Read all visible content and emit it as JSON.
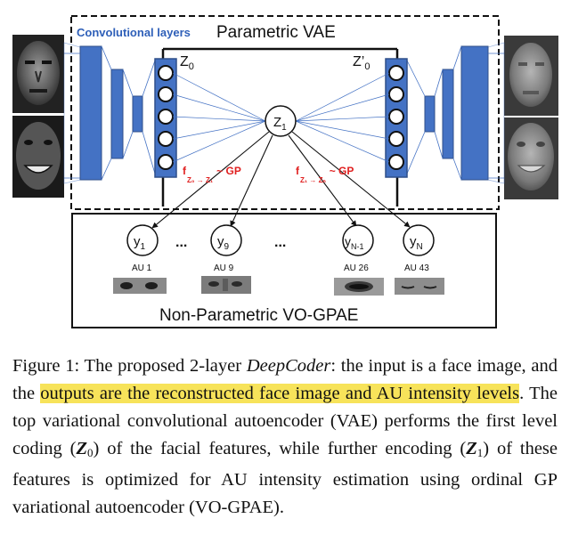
{
  "diagram": {
    "conv_layers_label": "Convolutional layers",
    "vae_title": "Parametric VAE",
    "z0_label": "Z",
    "z0_sub": "0",
    "z0p_label": "Z’",
    "z0p_sub": "0",
    "z1_label": "Z",
    "z1_sub": "1",
    "gp_left_f": "f",
    "gp_left_sub": "Z₀ → Z₁",
    "gp_left_tail": "~ GP",
    "gp_right_f": "f",
    "gp_right_sub": "Z₁ → Zₙ",
    "gp_right_tail": "~ GP",
    "gpae_title": "Non-Parametric VO-GPAE",
    "outputs": [
      {
        "label": "y",
        "sub": "1",
        "au": "AU 1"
      },
      {
        "label": "y",
        "sub": "9",
        "au": "AU 9"
      },
      {
        "label": "y",
        "sub": "N-1",
        "au": "AU 26"
      },
      {
        "label": "y",
        "sub": "N",
        "au": "AU 43"
      }
    ],
    "ellipsis": "..."
  },
  "caption": {
    "part1": "Figure 1: The proposed 2-layer ",
    "title_italic": "DeepCoder",
    "part2": ": the input is a face image, and the ",
    "highlight": "outputs are the reconstructed face image and AU intensity levels",
    "part3": ". The top variational convolutional autoencoder (VAE) performs the first level coding (",
    "z0": "Z",
    "z0_sub": "0",
    "part4": ") of the facial features, while further encoding (",
    "z1": "Z",
    "z1_sub": "1",
    "part5": ") of these features is optimized for AU intensity estimation using ordinal GP variational autoencoder (VO-GPAE)."
  },
  "colors": {
    "layer_blue": "#4472c4",
    "layer_stroke": "#2f4f8a",
    "gp_red": "#e02020",
    "conv_text": "#2e5fb8",
    "highlight": "#f7e35a"
  }
}
